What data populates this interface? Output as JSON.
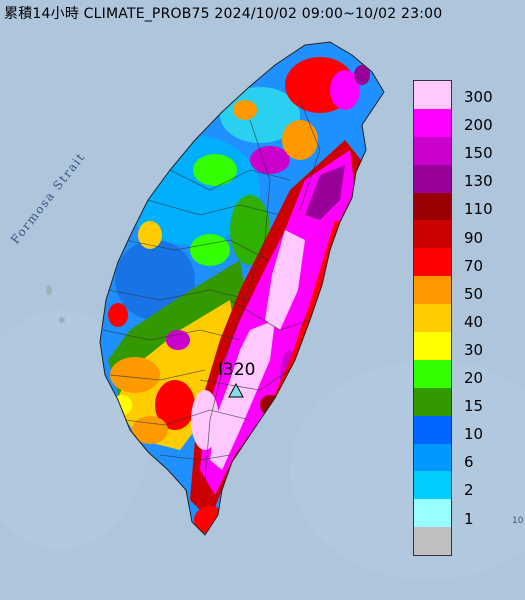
{
  "title": "累積14小時 CLIMATE_PROB75 2024/10/02 09:00~10/02 23:00",
  "map_label": "Formosa Strait",
  "marker": {
    "label": "I320",
    "icon": "triangle-marker-icon",
    "color": "#7fe0e6"
  },
  "edge_text": "10",
  "legend": {
    "levels": [
      {
        "label": "300",
        "color": "#ffc8ff"
      },
      {
        "label": "200",
        "color": "#ff00ff"
      },
      {
        "label": "150",
        "color": "#cc00cc"
      },
      {
        "label": "130",
        "color": "#990099"
      },
      {
        "label": "110",
        "color": "#990000"
      },
      {
        "label": "90",
        "color": "#cc0000"
      },
      {
        "label": "70",
        "color": "#ff0000"
      },
      {
        "label": "50",
        "color": "#ff9900"
      },
      {
        "label": "40",
        "color": "#ffcc00"
      },
      {
        "label": "30",
        "color": "#ffff00"
      },
      {
        "label": "20",
        "color": "#33ff00"
      },
      {
        "label": "15",
        "color": "#339900"
      },
      {
        "label": "10",
        "color": "#0066ff"
      },
      {
        "label": "6",
        "color": "#0099ff"
      },
      {
        "label": "2",
        "color": "#00ccff"
      },
      {
        "label": "1",
        "color": "#99ffff"
      },
      {
        "label": "",
        "color": "#c0c0c0"
      }
    ]
  }
}
